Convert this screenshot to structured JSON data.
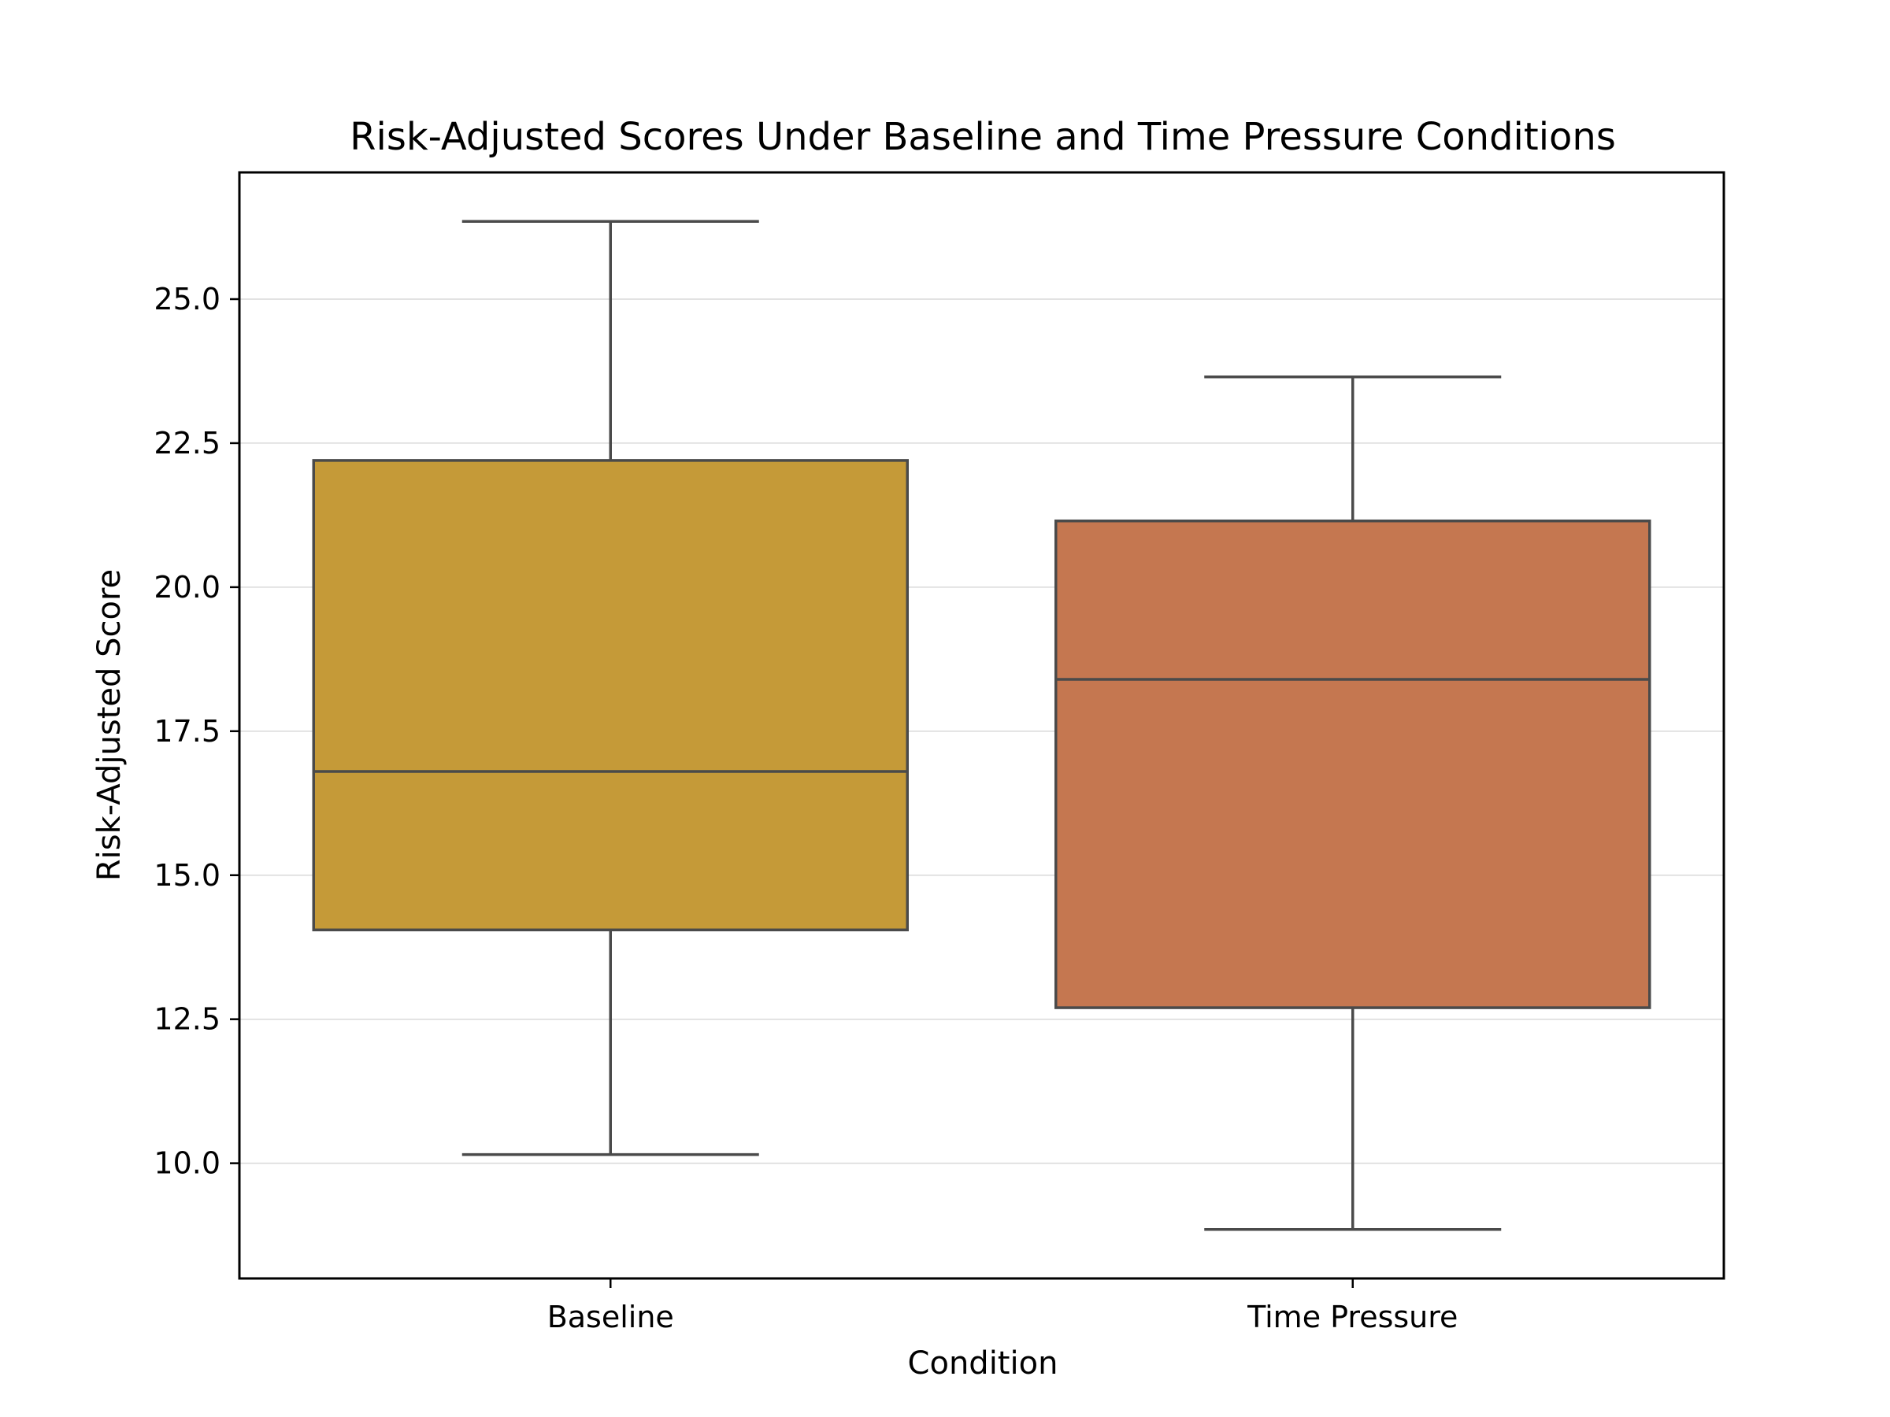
{
  "chart_data": {
    "type": "box",
    "title": "Risk-Adjusted Scores Under Baseline and Time Pressure Conditions",
    "xlabel": "Condition",
    "ylabel": "Risk-Adjusted Score",
    "categories": [
      "Baseline",
      "Time Pressure"
    ],
    "ylim": [
      8.0,
      27.2
    ],
    "yticks": [
      10.0,
      12.5,
      15.0,
      17.5,
      20.0,
      22.5,
      25.0
    ],
    "ytick_labels": [
      "10.0",
      "12.5",
      "15.0",
      "17.5",
      "20.0",
      "22.5",
      "25.0"
    ],
    "grid": "horizontal",
    "boxes": [
      {
        "category": "Baseline",
        "whisker_low": 10.15,
        "q1": 14.05,
        "median": 16.8,
        "q3": 22.2,
        "whisker_high": 26.35,
        "color": "#c59a38"
      },
      {
        "category": "Time Pressure",
        "whisker_low": 8.85,
        "q1": 12.7,
        "median": 18.4,
        "q3": 21.15,
        "whisker_high": 23.65,
        "color": "#c57750"
      }
    ],
    "colors": {
      "box_edge": "#4a4a4a",
      "grid": "#d9d9d9",
      "axes": "#000000"
    }
  }
}
